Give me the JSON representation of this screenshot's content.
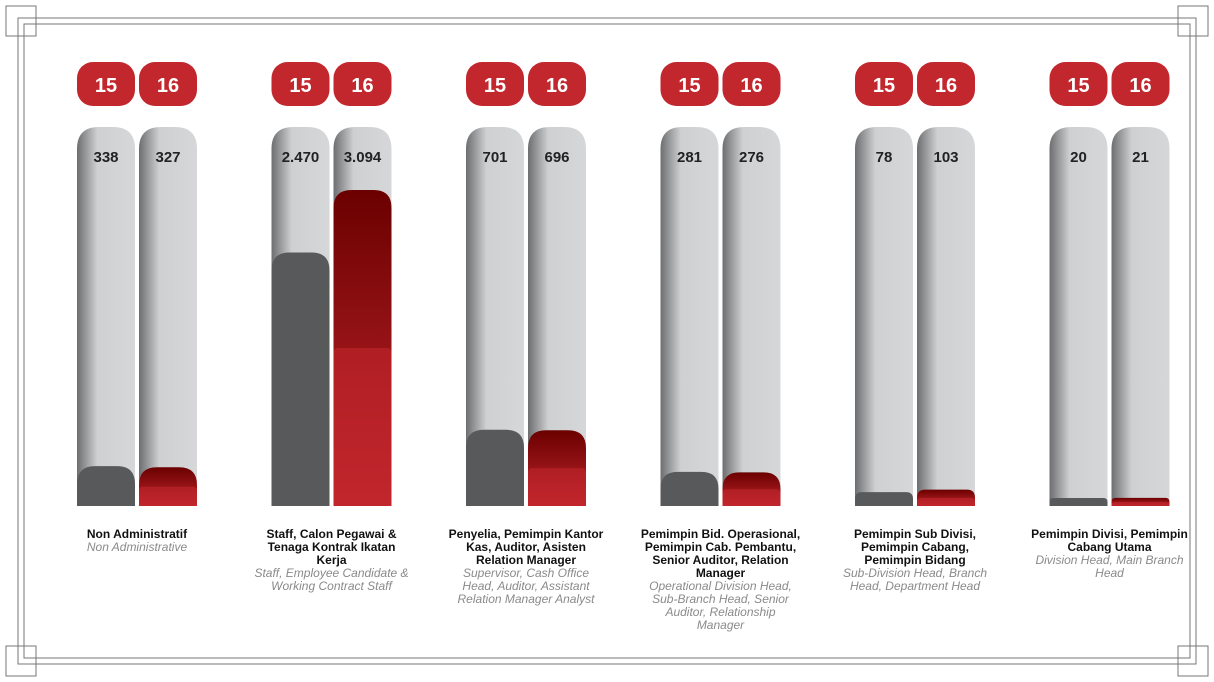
{
  "chart_data": {
    "type": "bar",
    "categories": [
      "Non Administratif",
      "Staff, Calon Pegawai & Tenaga Kontrak Ikatan Kerja",
      "Penyelia, Pemimpin Kantor Kas, Auditor, Asisten Relation Manager",
      "Pemimpin Bid. Operasional, Pemimpin Cab. Pembantu, Senior Auditor, Relation Manager",
      "Pemimpin Sub Divisi, Pemimpin Cabang, Pemimpin Bidang",
      "Pemimpin Divisi, Pemimpin Cabang Utama"
    ],
    "category_translations": [
      "Non Administrative",
      "Staff, Employee Candidate & Working Contract  Staff",
      "Supervisor, Cash Office Head, Auditor, Assistant Relation Manager Analyst",
      "Operational Division Head, Sub-Branch Head, Senior Auditor, Relationship Manager",
      "Sub-Division Head, Branch Head, Department Head",
      "Division Head, Main Branch Head"
    ],
    "series": [
      {
        "name": "15",
        "color": "#58595b",
        "values": [
          338,
          2470,
          701,
          281,
          78,
          20
        ],
        "value_labels": [
          "338",
          "2.470",
          "701",
          "281",
          "78",
          "20"
        ]
      },
      {
        "name": "16",
        "color": "#c1272d",
        "values": [
          327,
          3094,
          696,
          276,
          103,
          21
        ],
        "value_labels": [
          "327",
          "3.094",
          "696",
          "276",
          "103",
          "21"
        ]
      }
    ]
  }
}
